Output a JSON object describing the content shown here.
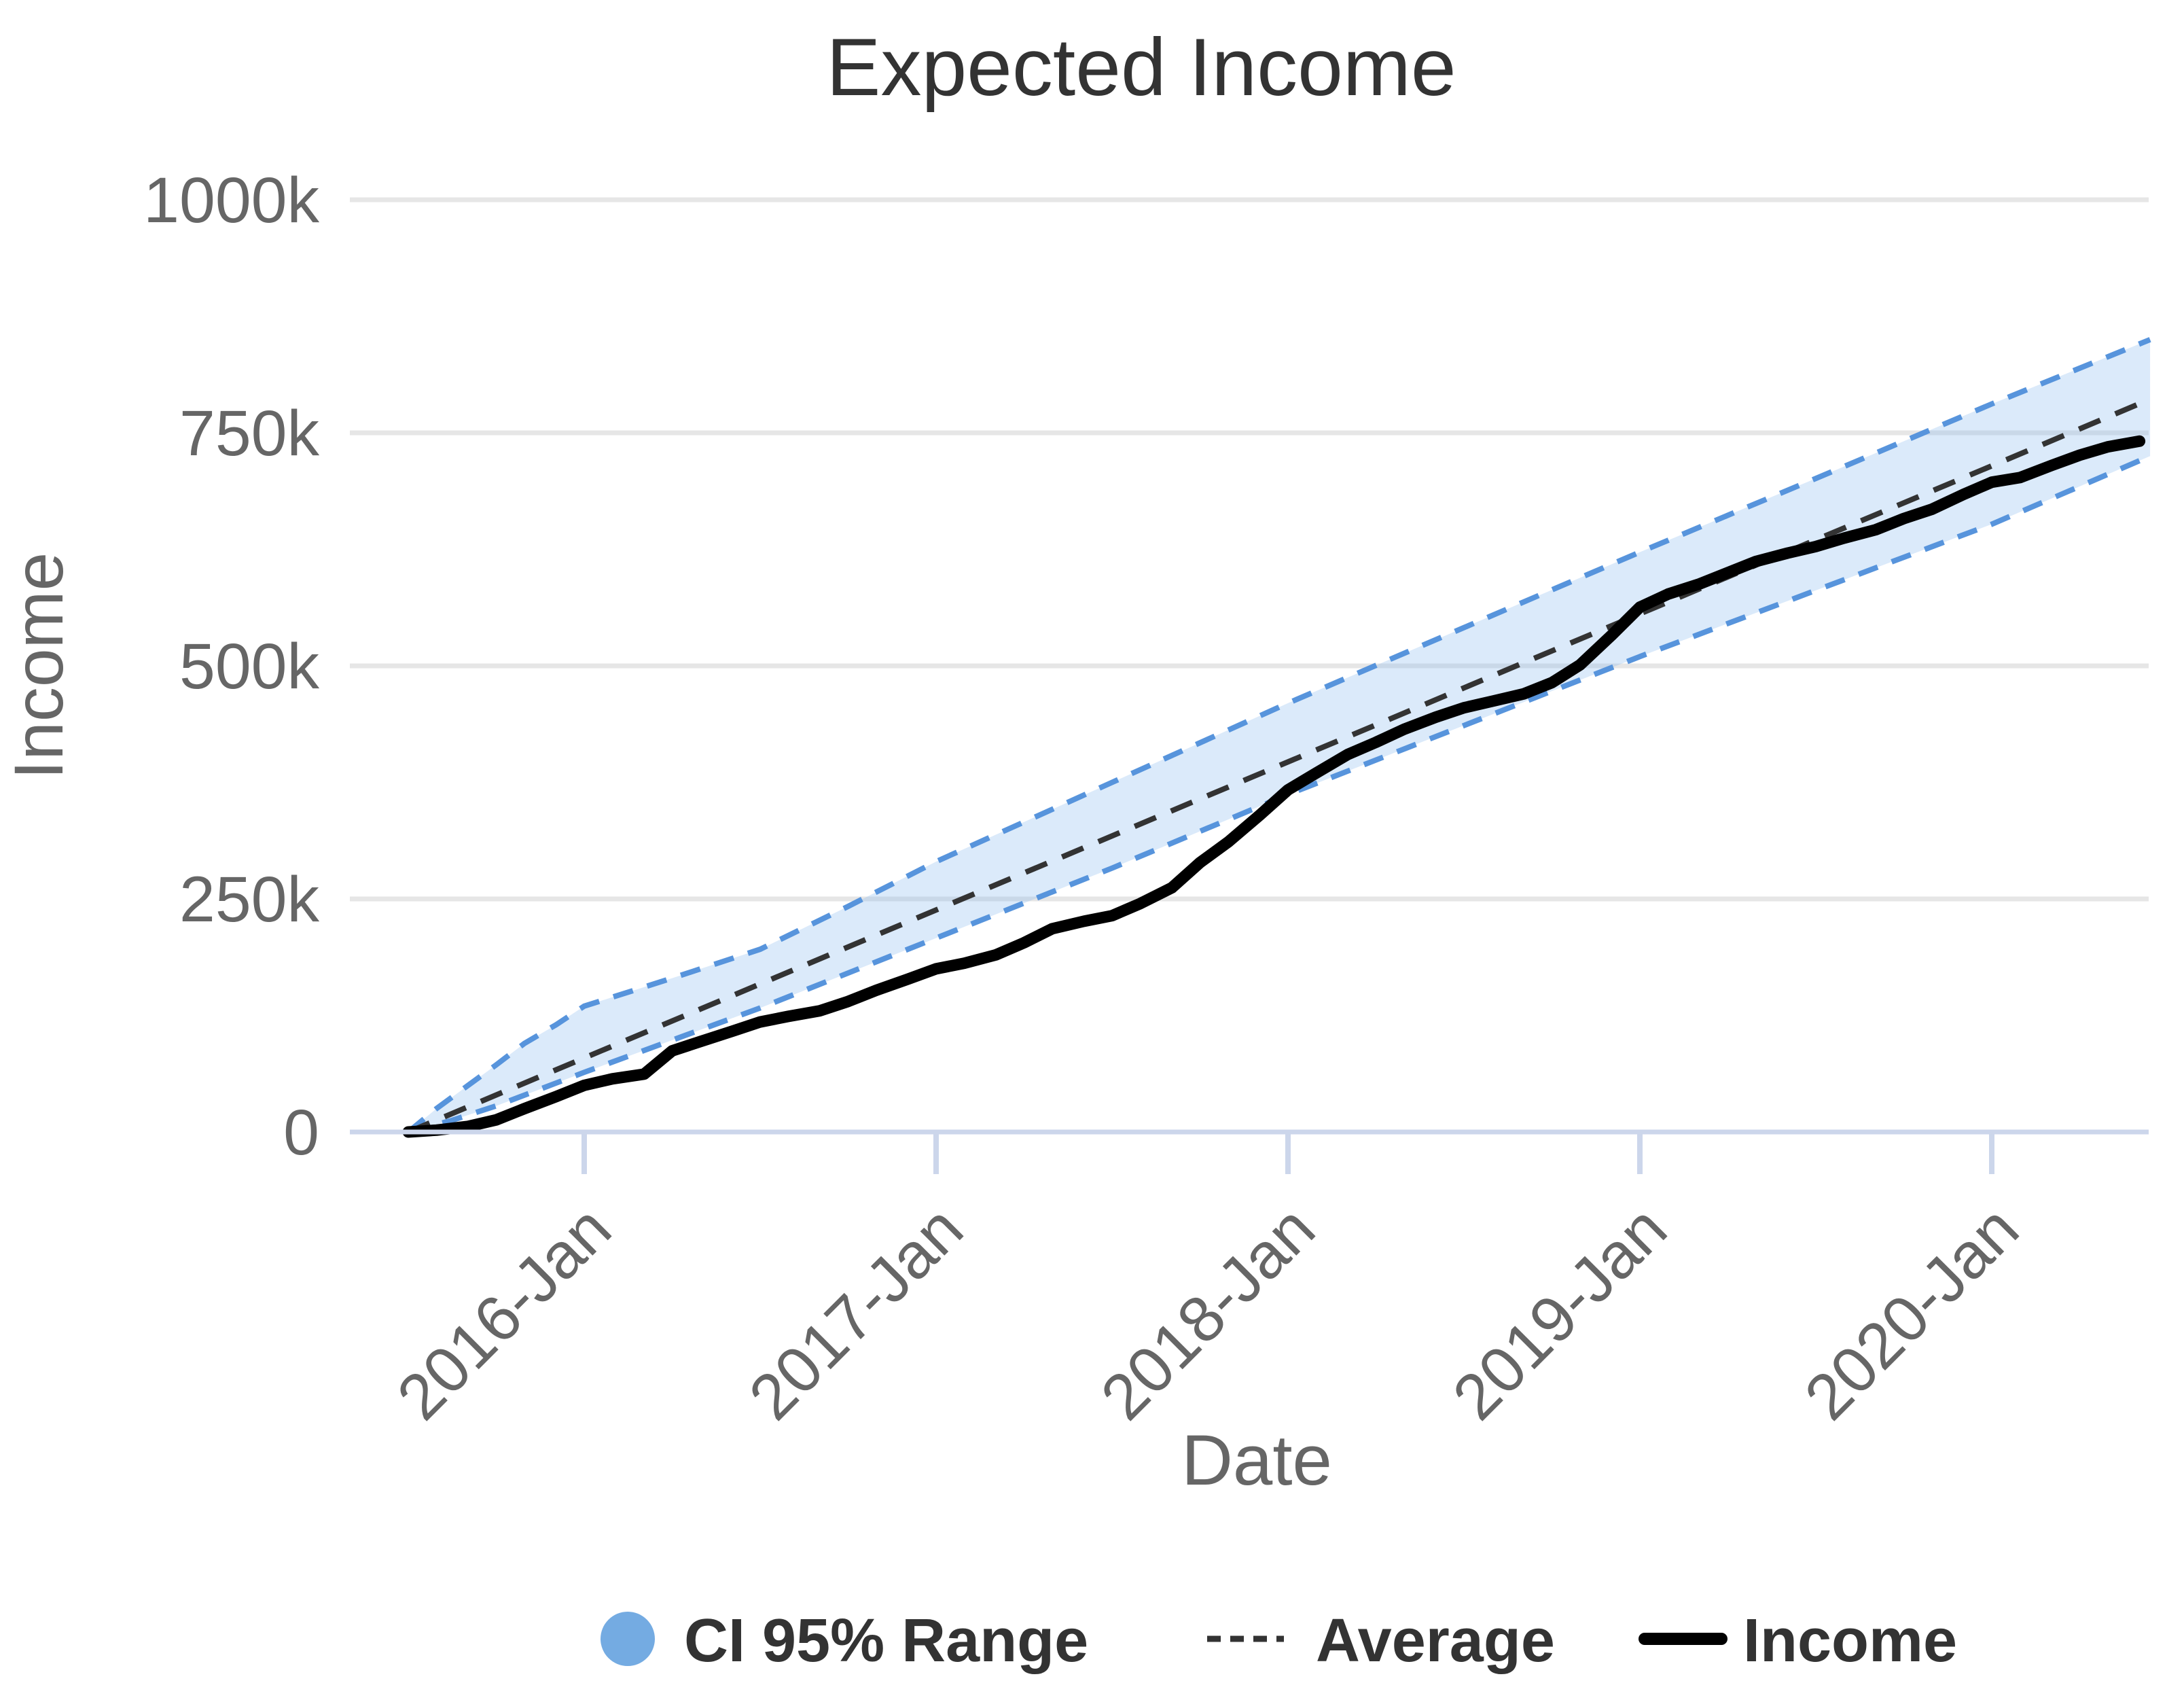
{
  "chart": {
    "title": "Expected Income",
    "y_axis": {
      "title": "Income"
    },
    "x_axis": {
      "title": "Date"
    },
    "legend": [
      {
        "label": "CI 95% Range",
        "marker": "circle-icon",
        "color": "#74abe2"
      },
      {
        "label": "Average",
        "marker": "dashed-line-icon",
        "color": "#333333"
      },
      {
        "label": "Income",
        "marker": "solid-line-icon",
        "color": "#000000"
      }
    ]
  },
  "colors": {
    "title": "#333333",
    "axis_labels": "#666666",
    "axis_line": "#ccd6eb",
    "gridline": "#e6e6e6",
    "band_fill": "rgba(124,181,236,0.28)",
    "band_edge": "#5794dc",
    "average_line": "#333333",
    "income_line": "#000000",
    "legend_text": "#333333",
    "background": "#ffffff"
  },
  "chart_data": {
    "type": "line",
    "title": "Expected Income",
    "xlabel": "Date",
    "ylabel": "Income",
    "y_unit": "thousands (k)",
    "x_unit": "decimal year",
    "ylim": [
      0,
      1000
    ],
    "xlim": [
      2015.32,
      2020.45
    ],
    "grid": true,
    "legend_position": "bottom",
    "y_ticks": [
      {
        "v": 0,
        "label": "0"
      },
      {
        "v": 250,
        "label": "250k"
      },
      {
        "v": 500,
        "label": "500k"
      },
      {
        "v": 750,
        "label": "750k"
      },
      {
        "v": 1000,
        "label": "1000k"
      }
    ],
    "x_ticks": [
      {
        "t": 2016,
        "label": "2016-Jan"
      },
      {
        "t": 2017,
        "label": "2017-Jan"
      },
      {
        "t": 2018,
        "label": "2018-Jan"
      },
      {
        "t": 2019,
        "label": "2019-Jan"
      },
      {
        "t": 2020,
        "label": "2020-Jan"
      }
    ],
    "series": [
      {
        "name": "CI 95% Range upper bound",
        "style": "dashed",
        "color": "#5794dc",
        "points": [
          [
            2015.5,
            0
          ],
          [
            2015.58,
            25
          ],
          [
            2015.67,
            50
          ],
          [
            2015.75,
            72
          ],
          [
            2015.83,
            95
          ],
          [
            2015.92,
            115
          ],
          [
            2016,
            135
          ],
          [
            2016.25,
            165
          ],
          [
            2016.5,
            196
          ],
          [
            2016.75,
            242
          ],
          [
            2017,
            290
          ],
          [
            2017.5,
            375
          ],
          [
            2018,
            460
          ],
          [
            2018.5,
            541
          ],
          [
            2019,
            622
          ],
          [
            2019.5,
            701
          ],
          [
            2020,
            781
          ],
          [
            2020.45,
            850
          ]
        ]
      },
      {
        "name": "CI 95% Range lower bound",
        "style": "dashed",
        "color": "#5794dc",
        "points": [
          [
            2015.5,
            0
          ],
          [
            2015.62,
            12
          ],
          [
            2015.75,
            28
          ],
          [
            2016,
            64
          ],
          [
            2016.5,
            133
          ],
          [
            2017,
            208
          ],
          [
            2017.5,
            283
          ],
          [
            2018,
            362
          ],
          [
            2018.5,
            436
          ],
          [
            2019,
            510
          ],
          [
            2019.5,
            581
          ],
          [
            2020,
            652
          ],
          [
            2020.45,
            725
          ]
        ]
      },
      {
        "name": "Average",
        "style": "dashed",
        "color": "#333333",
        "points": [
          [
            2015.5,
            0
          ],
          [
            2020.45,
            786
          ]
        ]
      },
      {
        "name": "Income",
        "style": "solid",
        "color": "#000000",
        "points": [
          [
            2015.5,
            0
          ],
          [
            2015.58,
            2
          ],
          [
            2015.67,
            6
          ],
          [
            2015.75,
            13
          ],
          [
            2015.83,
            25
          ],
          [
            2015.92,
            38
          ],
          [
            2016,
            50
          ],
          [
            2016.08,
            57
          ],
          [
            2016.17,
            62
          ],
          [
            2016.25,
            87
          ],
          [
            2016.33,
            97
          ],
          [
            2016.42,
            108
          ],
          [
            2016.5,
            118
          ],
          [
            2016.58,
            124
          ],
          [
            2016.67,
            130
          ],
          [
            2016.75,
            140
          ],
          [
            2016.83,
            152
          ],
          [
            2016.92,
            164
          ],
          [
            2017,
            175
          ],
          [
            2017.08,
            181
          ],
          [
            2017.17,
            190
          ],
          [
            2017.25,
            203
          ],
          [
            2017.33,
            218
          ],
          [
            2017.42,
            226
          ],
          [
            2017.5,
            232
          ],
          [
            2017.58,
            245
          ],
          [
            2017.67,
            262
          ],
          [
            2017.75,
            289
          ],
          [
            2017.83,
            311
          ],
          [
            2017.92,
            340
          ],
          [
            2018,
            367
          ],
          [
            2018.08,
            385
          ],
          [
            2018.17,
            405
          ],
          [
            2018.25,
            418
          ],
          [
            2018.33,
            432
          ],
          [
            2018.42,
            445
          ],
          [
            2018.5,
            455
          ],
          [
            2018.58,
            462
          ],
          [
            2018.67,
            470
          ],
          [
            2018.75,
            482
          ],
          [
            2018.83,
            501
          ],
          [
            2018.92,
            533
          ],
          [
            2019,
            563
          ],
          [
            2019.08,
            577
          ],
          [
            2019.17,
            588
          ],
          [
            2019.25,
            600
          ],
          [
            2019.33,
            612
          ],
          [
            2019.42,
            621
          ],
          [
            2019.5,
            628
          ],
          [
            2019.58,
            637
          ],
          [
            2019.67,
            646
          ],
          [
            2019.75,
            658
          ],
          [
            2019.83,
            668
          ],
          [
            2019.92,
            684
          ],
          [
            2020,
            697
          ],
          [
            2020.08,
            702
          ],
          [
            2020.17,
            715
          ],
          [
            2020.25,
            726
          ],
          [
            2020.33,
            735
          ],
          [
            2020.42,
            741
          ]
        ]
      }
    ]
  }
}
